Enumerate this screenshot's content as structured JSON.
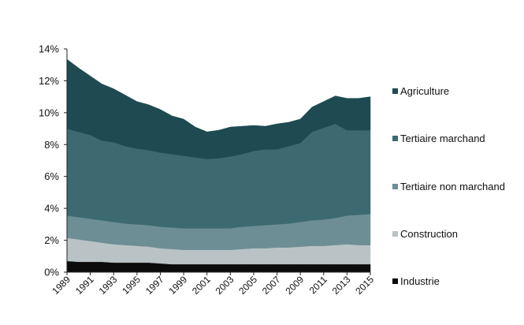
{
  "chart_data": {
    "type": "area",
    "stacked": true,
    "x": [
      1989,
      1990,
      1991,
      1992,
      1993,
      1994,
      1995,
      1996,
      1997,
      1998,
      1999,
      2000,
      2001,
      2002,
      2003,
      2004,
      2005,
      2006,
      2007,
      2008,
      2009,
      2010,
      2011,
      2012,
      2013,
      2014,
      2015
    ],
    "x_tick_labels": [
      "1989",
      "1991",
      "1993",
      "1995",
      "1997",
      "1999",
      "2001",
      "2003",
      "2005",
      "2007",
      "2009",
      "2011",
      "2013",
      "2015"
    ],
    "ylim": [
      0,
      14
    ],
    "y_tick_labels": [
      "0%",
      "2%",
      "4%",
      "6%",
      "8%",
      "10%",
      "12%",
      "14%"
    ],
    "series": [
      {
        "name": "Industrie",
        "color": "#0b0b0b",
        "values": [
          0.7,
          0.65,
          0.65,
          0.65,
          0.6,
          0.6,
          0.6,
          0.6,
          0.55,
          0.5,
          0.5,
          0.5,
          0.5,
          0.5,
          0.5,
          0.5,
          0.5,
          0.5,
          0.5,
          0.5,
          0.5,
          0.5,
          0.5,
          0.5,
          0.5,
          0.5,
          0.5
        ]
      },
      {
        "name": "Construction",
        "color": "#b9c3c6",
        "values": [
          1.45,
          1.4,
          1.3,
          1.2,
          1.15,
          1.1,
          1.05,
          1.0,
          0.95,
          0.95,
          0.9,
          0.9,
          0.9,
          0.9,
          0.9,
          0.95,
          1.0,
          1.0,
          1.05,
          1.05,
          1.1,
          1.15,
          1.15,
          1.2,
          1.25,
          1.2,
          1.2
        ]
      },
      {
        "name": "Tertiaire non marchand",
        "color": "#6d8e94",
        "values": [
          1.4,
          1.4,
          1.4,
          1.4,
          1.4,
          1.35,
          1.35,
          1.35,
          1.35,
          1.35,
          1.35,
          1.35,
          1.35,
          1.35,
          1.35,
          1.4,
          1.4,
          1.45,
          1.45,
          1.5,
          1.55,
          1.6,
          1.65,
          1.7,
          1.8,
          1.9,
          1.95
        ]
      },
      {
        "name": "Tertiaire marchand",
        "color": "#3c6a70",
        "values": [
          5.45,
          5.35,
          5.25,
          5.0,
          5.0,
          4.85,
          4.75,
          4.7,
          4.65,
          4.6,
          4.55,
          4.45,
          4.35,
          4.4,
          4.5,
          4.55,
          4.7,
          4.75,
          4.7,
          4.85,
          4.95,
          5.55,
          5.75,
          5.9,
          5.35,
          5.3,
          5.25
        ]
      },
      {
        "name": "Agriculture",
        "color": "#1e4b51",
        "values": [
          4.35,
          4.0,
          3.7,
          3.55,
          3.35,
          3.2,
          2.95,
          2.85,
          2.7,
          2.4,
          2.3,
          1.9,
          1.7,
          1.75,
          1.85,
          1.75,
          1.6,
          1.45,
          1.6,
          1.5,
          1.5,
          1.55,
          1.65,
          1.75,
          2.0,
          2.0,
          2.1
        ]
      }
    ],
    "legend_order": [
      "Agriculture",
      "Tertiaire marchand",
      "Tertiaire non marchand",
      "Construction",
      "Industrie"
    ],
    "legend_placement": "right",
    "grid": false
  }
}
